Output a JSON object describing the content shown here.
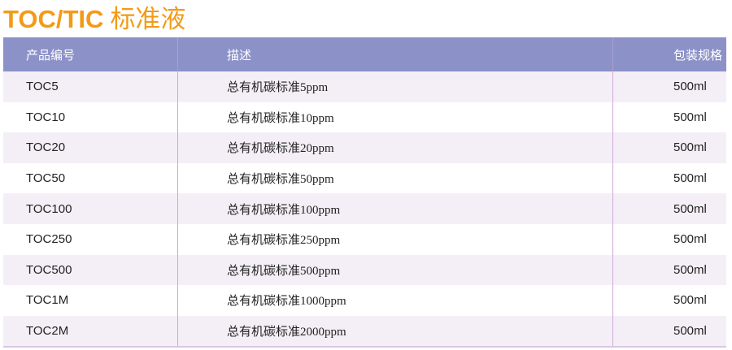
{
  "title": {
    "en": "TOC/TIC",
    "cn": "标准液"
  },
  "colors": {
    "title": "#f39a16",
    "header": "#8c92c8",
    "row_alt": "#f4eff7"
  },
  "table": {
    "headers": [
      "产品编号",
      "描述",
      "包装规格"
    ],
    "rows": [
      [
        "TOC5",
        "总有机碳标准5ppm",
        "500ml"
      ],
      [
        "TOC10",
        "总有机碳标准10ppm",
        "500ml"
      ],
      [
        "TOC20",
        "总有机碳标准20ppm",
        "500ml"
      ],
      [
        "TOC50",
        "总有机碳标准50ppm",
        "500ml"
      ],
      [
        "TOC100",
        "总有机碳标准100ppm",
        "500ml"
      ],
      [
        "TOC250",
        "总有机碳标准250ppm",
        "500ml"
      ],
      [
        "TOC500",
        "总有机碳标准500ppm",
        "500ml"
      ],
      [
        "TOC1M",
        "总有机碳标准1000ppm",
        "500ml"
      ],
      [
        "TOC2M",
        "总有机碳标准2000ppm",
        "500ml"
      ]
    ]
  }
}
